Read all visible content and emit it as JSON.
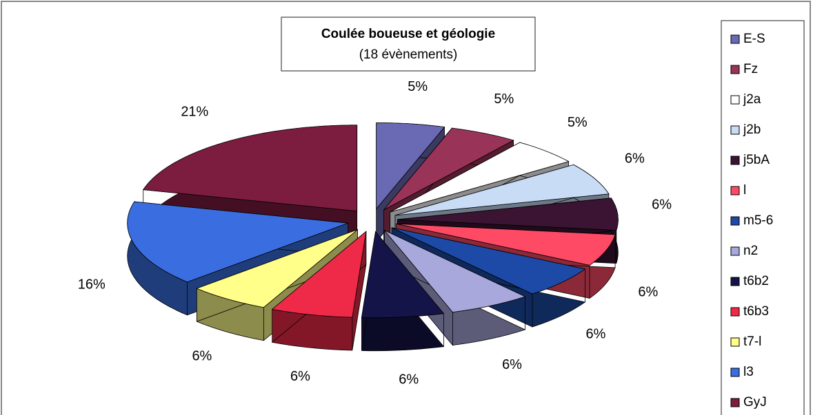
{
  "chart_data": {
    "type": "pie",
    "title": "Coulée boueuse et géologie",
    "subtitle": "(18 évènements)",
    "categories": [
      "E-S",
      "Fz",
      "j2a",
      "j2b",
      "j5bA",
      "l",
      "m5-6",
      "n2",
      "t6b2",
      "t6b3",
      "t7-l",
      "l3",
      "GyJ"
    ],
    "values": [
      5,
      5,
      5,
      6,
      6,
      6,
      6,
      6,
      6,
      6,
      6,
      16,
      21
    ],
    "value_labels": [
      "5%",
      "5%",
      "5%",
      "6%",
      "6%",
      "6%",
      "6%",
      "6%",
      "6%",
      "6%",
      "6%",
      "16%",
      "21%"
    ],
    "colors": [
      "#6a6ab4",
      "#9a3358",
      "#ffffff",
      "#c8dcf6",
      "#3a1432",
      "#ff4a66",
      "#1c4aa6",
      "#a8a8dc",
      "#141448",
      "#ee2a48",
      "#ffff8a",
      "#3a6ee0",
      "#7c1c3e"
    ],
    "legend": "right"
  }
}
